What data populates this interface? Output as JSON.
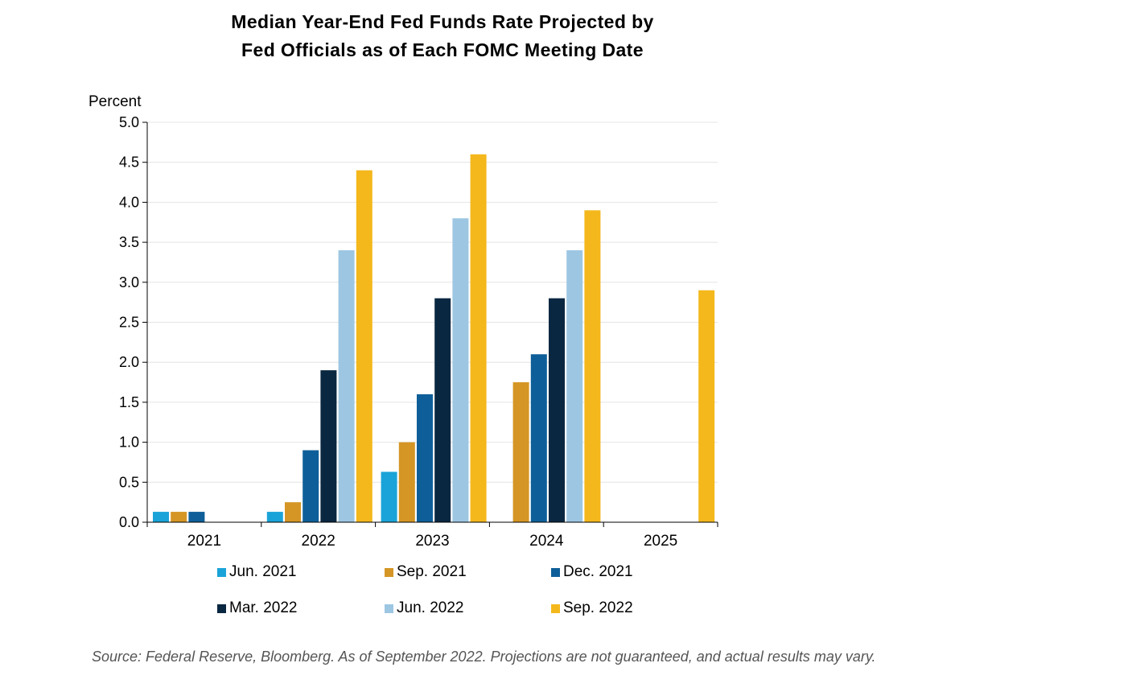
{
  "chart_data": {
    "type": "bar",
    "title_lines": [
      "Median Year-End Fed Funds Rate Projected by",
      "Fed Officials as of Each FOMC Meeting Date"
    ],
    "ylabel": "Percent",
    "xlabel": "",
    "ylim": [
      0,
      5.0
    ],
    "y_ticks": [
      "0.0",
      "0.5",
      "1.0",
      "1.5",
      "2.0",
      "2.5",
      "3.0",
      "3.5",
      "4.0",
      "4.5",
      "5.0"
    ],
    "grid": true,
    "legend_position": "bottom",
    "categories": [
      "2021",
      "2022",
      "2023",
      "2024",
      "2025"
    ],
    "series": [
      {
        "name": "Jun. 2021",
        "color": "#1AA3D8",
        "values": [
          0.13,
          0.13,
          0.63,
          null,
          null
        ]
      },
      {
        "name": "Sep. 2021",
        "color": "#D59625",
        "values": [
          0.13,
          0.25,
          1.0,
          1.75,
          null
        ]
      },
      {
        "name": "Dec. 2021",
        "color": "#0E5F99",
        "values": [
          0.13,
          0.9,
          1.6,
          2.1,
          null
        ]
      },
      {
        "name": "Mar. 2022",
        "color": "#0A2741",
        "values": [
          null,
          1.9,
          2.8,
          2.8,
          null
        ]
      },
      {
        "name": "Jun. 2022",
        "color": "#9DC6E2",
        "values": [
          null,
          3.4,
          3.8,
          3.4,
          null
        ]
      },
      {
        "name": "Sep. 2022",
        "color": "#F4B81C",
        "values": [
          null,
          4.4,
          4.6,
          3.9,
          2.9
        ]
      }
    ]
  },
  "source_note": "Source: Federal Reserve, Bloomberg.  As of September 2022. Projections are not guaranteed, and actual results may vary."
}
